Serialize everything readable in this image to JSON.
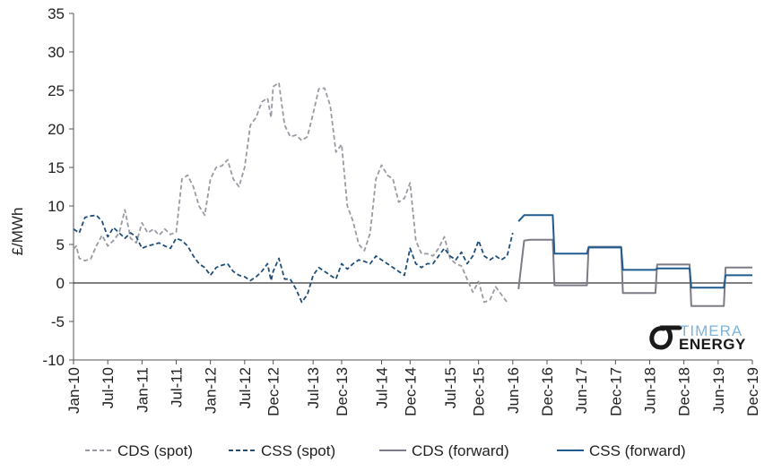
{
  "chart_data": {
    "type": "line",
    "title": "",
    "xlabel": "",
    "ylabel": "£/MWh",
    "ylim": [
      -10,
      35
    ],
    "yticks": [
      -10,
      -5,
      0,
      5,
      10,
      15,
      20,
      25,
      30,
      35
    ],
    "xlim": [
      "2010-01",
      "2019-12"
    ],
    "xtick_labels": [
      {
        "t": "2010-01",
        "label": "Jan-10"
      },
      {
        "t": "2010-07",
        "label": "Jul-10"
      },
      {
        "t": "2011-01",
        "label": "Jan-11"
      },
      {
        "t": "2011-07",
        "label": "Jul-11"
      },
      {
        "t": "2012-01",
        "label": "Jan-12"
      },
      {
        "t": "2012-07",
        "label": "Jul-12"
      },
      {
        "t": "2012-12",
        "label": "Dec-12"
      },
      {
        "t": "2013-07",
        "label": "Jul-13"
      },
      {
        "t": "2013-12",
        "label": "Dec-13"
      },
      {
        "t": "2014-07",
        "label": "Jul-14"
      },
      {
        "t": "2014-12",
        "label": "Dec-14"
      },
      {
        "t": "2015-07",
        "label": "Jul-15"
      },
      {
        "t": "2015-12",
        "label": "Dec-15"
      },
      {
        "t": "2016-06",
        "label": "Jun-16"
      },
      {
        "t": "2016-12",
        "label": "Dec-16"
      },
      {
        "t": "2017-06",
        "label": "Jun-17"
      },
      {
        "t": "2017-12",
        "label": "Dec-17"
      },
      {
        "t": "2018-06",
        "label": "Jun-18"
      },
      {
        "t": "2018-12",
        "label": "Dec-18"
      },
      {
        "t": "2019-06",
        "label": "Jun-19"
      },
      {
        "t": "2019-12",
        "label": "Dec-19"
      }
    ],
    "grid": false,
    "legend": "bottom",
    "series": [
      {
        "name": "CDS (spot)",
        "color": "#9a9aa4",
        "style": "dashed",
        "points": [
          [
            "2010-01",
            4.4
          ],
          [
            "2010-01-15",
            4.8
          ],
          [
            "2010-02",
            3.2
          ],
          [
            "2010-03",
            2.9
          ],
          [
            "2010-04",
            3.1
          ],
          [
            "2010-05",
            4.8
          ],
          [
            "2010-06",
            6.2
          ],
          [
            "2010-07",
            4.8
          ],
          [
            "2010-08",
            5.5
          ],
          [
            "2010-09",
            6.5
          ],
          [
            "2010-10",
            9.5
          ],
          [
            "2010-11",
            5.8
          ],
          [
            "2010-12",
            5.2
          ],
          [
            "2011-01",
            7.8
          ],
          [
            "2011-02",
            6.5
          ],
          [
            "2011-03",
            7.0
          ],
          [
            "2011-04",
            6.2
          ],
          [
            "2011-05",
            7.0
          ],
          [
            "2011-06",
            6.3
          ],
          [
            "2011-07",
            6.6
          ],
          [
            "2011-08",
            13.5
          ],
          [
            "2011-09",
            14.0
          ],
          [
            "2011-10",
            12.5
          ],
          [
            "2011-11",
            10.0
          ],
          [
            "2011-12",
            8.8
          ],
          [
            "2012-01",
            13.5
          ],
          [
            "2012-02",
            15.0
          ],
          [
            "2012-03",
            15.2
          ],
          [
            "2012-04",
            16.0
          ],
          [
            "2012-05",
            13.5
          ],
          [
            "2012-06",
            12.5
          ],
          [
            "2012-07",
            15.0
          ],
          [
            "2012-08",
            20.5
          ],
          [
            "2012-09",
            21.5
          ],
          [
            "2012-10",
            23.5
          ],
          [
            "2012-11",
            24.0
          ],
          [
            "2012-11-20",
            21.5
          ],
          [
            "2012-12",
            25.5
          ],
          [
            "2013-01",
            26.0
          ],
          [
            "2013-02",
            20.5
          ],
          [
            "2013-03",
            19.0
          ],
          [
            "2013-04",
            19.2
          ],
          [
            "2013-05",
            18.5
          ],
          [
            "2013-06",
            19.0
          ],
          [
            "2013-07",
            22.0
          ],
          [
            "2013-08",
            25.2
          ],
          [
            "2013-09",
            25.3
          ],
          [
            "2013-10",
            23.0
          ],
          [
            "2013-11",
            17.0
          ],
          [
            "2013-12",
            18.0
          ],
          [
            "2014-01",
            10.0
          ],
          [
            "2014-02",
            8.0
          ],
          [
            "2014-03",
            5.0
          ],
          [
            "2014-04",
            4.2
          ],
          [
            "2014-05",
            6.5
          ],
          [
            "2014-06",
            13.5
          ],
          [
            "2014-07",
            15.3
          ],
          [
            "2014-08",
            14.0
          ],
          [
            "2014-09",
            13.5
          ],
          [
            "2014-10",
            10.5
          ],
          [
            "2014-11",
            11.0
          ],
          [
            "2014-12",
            13.0
          ],
          [
            "2015-01",
            5.5
          ],
          [
            "2015-02",
            3.8
          ],
          [
            "2015-03",
            3.8
          ],
          [
            "2015-04",
            3.5
          ],
          [
            "2015-05",
            4.5
          ],
          [
            "2015-06",
            6.0
          ],
          [
            "2015-07",
            3.2
          ],
          [
            "2015-08",
            2.5
          ],
          [
            "2015-09",
            2.2
          ],
          [
            "2015-10",
            0.5
          ],
          [
            "2015-11",
            -1.2
          ],
          [
            "2015-12",
            0.2
          ],
          [
            "2016-01",
            -2.5
          ],
          [
            "2016-02",
            -2.2
          ],
          [
            "2016-03",
            -0.5
          ],
          [
            "2016-04",
            -1.5
          ],
          [
            "2016-05",
            -2.5
          ]
        ]
      },
      {
        "name": "CSS (spot)",
        "color": "#1f4e79",
        "style": "dashed",
        "points": [
          [
            "2010-01",
            7.0
          ],
          [
            "2010-02",
            6.5
          ],
          [
            "2010-03",
            8.5
          ],
          [
            "2010-04",
            8.7
          ],
          [
            "2010-05",
            8.8
          ],
          [
            "2010-06",
            8.0
          ],
          [
            "2010-07",
            6.0
          ],
          [
            "2010-08",
            7.2
          ],
          [
            "2010-09",
            6.5
          ],
          [
            "2010-10",
            5.8
          ],
          [
            "2010-11",
            6.5
          ],
          [
            "2010-12",
            6.0
          ],
          [
            "2011-01",
            4.5
          ],
          [
            "2011-02",
            4.8
          ],
          [
            "2011-03",
            5.0
          ],
          [
            "2011-04",
            5.2
          ],
          [
            "2011-05",
            4.8
          ],
          [
            "2011-06",
            4.5
          ],
          [
            "2011-07",
            5.8
          ],
          [
            "2011-08",
            5.5
          ],
          [
            "2011-09",
            4.8
          ],
          [
            "2011-10",
            3.5
          ],
          [
            "2011-11",
            2.5
          ],
          [
            "2011-12",
            2.0
          ],
          [
            "2012-01",
            1.0
          ],
          [
            "2012-02",
            2.0
          ],
          [
            "2012-03",
            2.3
          ],
          [
            "2012-04",
            2.5
          ],
          [
            "2012-05",
            1.5
          ],
          [
            "2012-06",
            1.0
          ],
          [
            "2012-07",
            0.8
          ],
          [
            "2012-08",
            0.3
          ],
          [
            "2012-09",
            0.8
          ],
          [
            "2012-10",
            1.5
          ],
          [
            "2012-11",
            2.5
          ],
          [
            "2012-11-20",
            0.3
          ],
          [
            "2012-12",
            1.5
          ],
          [
            "2013-01",
            3.2
          ],
          [
            "2013-02",
            0.5
          ],
          [
            "2013-03",
            0.5
          ],
          [
            "2013-04",
            -0.8
          ],
          [
            "2013-05",
            -2.5
          ],
          [
            "2013-06",
            -1.5
          ],
          [
            "2013-07",
            1.0
          ],
          [
            "2013-08",
            2.0
          ],
          [
            "2013-09",
            1.5
          ],
          [
            "2013-10",
            1.0
          ],
          [
            "2013-11",
            0.5
          ],
          [
            "2013-12",
            2.5
          ],
          [
            "2014-01",
            1.8
          ],
          [
            "2014-02",
            2.5
          ],
          [
            "2014-03",
            3.0
          ],
          [
            "2014-04",
            2.8
          ],
          [
            "2014-05",
            2.5
          ],
          [
            "2014-06",
            3.5
          ],
          [
            "2014-07",
            3.0
          ],
          [
            "2014-08",
            2.5
          ],
          [
            "2014-09",
            2.0
          ],
          [
            "2014-10",
            1.5
          ],
          [
            "2014-11",
            1.0
          ],
          [
            "2014-12",
            4.5
          ],
          [
            "2015-01",
            2.5
          ],
          [
            "2015-02",
            2.0
          ],
          [
            "2015-03",
            2.5
          ],
          [
            "2015-04",
            2.5
          ],
          [
            "2015-05",
            3.5
          ],
          [
            "2015-06",
            4.5
          ],
          [
            "2015-07",
            3.5
          ],
          [
            "2015-08",
            3.0
          ],
          [
            "2015-09",
            4.0
          ],
          [
            "2015-10",
            2.5
          ],
          [
            "2015-11",
            3.5
          ],
          [
            "2015-12",
            5.5
          ],
          [
            "2016-01",
            3.5
          ],
          [
            "2016-02",
            3.0
          ],
          [
            "2016-03",
            3.5
          ],
          [
            "2016-04",
            3.0
          ],
          [
            "2016-05",
            3.5
          ],
          [
            "2016-06",
            6.5
          ]
        ]
      },
      {
        "name": "CDS (forward)",
        "color": "#7f7a87",
        "style": "solid",
        "points": [
          [
            "2016-07",
            -0.8
          ],
          [
            "2016-08",
            5.5
          ],
          [
            "2016-09",
            5.6
          ],
          [
            "2016-10",
            5.6
          ],
          [
            "2016-11",
            5.6
          ],
          [
            "2016-12",
            5.6
          ],
          [
            "2017-01",
            5.6
          ],
          [
            "2017-01-10",
            -0.3
          ],
          [
            "2017-02",
            -0.3
          ],
          [
            "2017-03",
            -0.3
          ],
          [
            "2017-04",
            -0.3
          ],
          [
            "2017-05",
            -0.3
          ],
          [
            "2017-06",
            -0.3
          ],
          [
            "2017-07",
            -0.3
          ],
          [
            "2017-07-10",
            4.7
          ],
          [
            "2017-08",
            4.7
          ],
          [
            "2017-09",
            4.7
          ],
          [
            "2017-10",
            4.7
          ],
          [
            "2017-11",
            4.7
          ],
          [
            "2017-12",
            4.7
          ],
          [
            "2018-01",
            4.7
          ],
          [
            "2018-01-10",
            -1.3
          ],
          [
            "2018-02",
            -1.3
          ],
          [
            "2018-03",
            -1.3
          ],
          [
            "2018-04",
            -1.3
          ],
          [
            "2018-05",
            -1.3
          ],
          [
            "2018-06",
            -1.3
          ],
          [
            "2018-07",
            -1.3
          ],
          [
            "2018-07-10",
            2.4
          ],
          [
            "2018-08",
            2.4
          ],
          [
            "2018-09",
            2.4
          ],
          [
            "2018-10",
            2.4
          ],
          [
            "2018-11",
            2.4
          ],
          [
            "2018-12",
            2.4
          ],
          [
            "2019-01",
            2.4
          ],
          [
            "2019-01-10",
            -3.0
          ],
          [
            "2019-02",
            -3.0
          ],
          [
            "2019-03",
            -3.0
          ],
          [
            "2019-04",
            -3.0
          ],
          [
            "2019-05",
            -3.0
          ],
          [
            "2019-06",
            -3.0
          ],
          [
            "2019-07",
            -3.0
          ],
          [
            "2019-07-10",
            2.0
          ],
          [
            "2019-12",
            2.0
          ]
        ]
      },
      {
        "name": "CSS (forward)",
        "color": "#1f5b8f",
        "style": "solid",
        "points": [
          [
            "2016-07",
            8.0
          ],
          [
            "2016-08",
            8.8
          ],
          [
            "2016-09",
            8.8
          ],
          [
            "2016-10",
            8.8
          ],
          [
            "2016-11",
            8.8
          ],
          [
            "2016-12",
            8.8
          ],
          [
            "2017-01",
            8.8
          ],
          [
            "2017-01-10",
            3.8
          ],
          [
            "2017-02",
            3.8
          ],
          [
            "2017-03",
            3.8
          ],
          [
            "2017-04",
            3.8
          ],
          [
            "2017-05",
            3.8
          ],
          [
            "2017-06",
            3.8
          ],
          [
            "2017-07",
            3.8
          ],
          [
            "2017-07-10",
            4.6
          ],
          [
            "2017-08",
            4.6
          ],
          [
            "2017-09",
            4.6
          ],
          [
            "2017-10",
            4.6
          ],
          [
            "2017-11",
            4.6
          ],
          [
            "2017-12",
            4.6
          ],
          [
            "2018-01",
            4.6
          ],
          [
            "2018-01-10",
            1.7
          ],
          [
            "2018-02",
            1.7
          ],
          [
            "2018-03",
            1.7
          ],
          [
            "2018-04",
            1.7
          ],
          [
            "2018-05",
            1.7
          ],
          [
            "2018-06",
            1.7
          ],
          [
            "2018-07",
            1.7
          ],
          [
            "2018-07-10",
            1.9
          ],
          [
            "2018-08",
            1.9
          ],
          [
            "2018-09",
            1.9
          ],
          [
            "2018-10",
            1.9
          ],
          [
            "2018-11",
            1.9
          ],
          [
            "2018-12",
            1.9
          ],
          [
            "2019-01",
            1.9
          ],
          [
            "2019-01-10",
            -0.6
          ],
          [
            "2019-02",
            -0.6
          ],
          [
            "2019-03",
            -0.6
          ],
          [
            "2019-04",
            -0.6
          ],
          [
            "2019-05",
            -0.6
          ],
          [
            "2019-06",
            -0.6
          ],
          [
            "2019-07",
            -0.6
          ],
          [
            "2019-07-10",
            1.0
          ],
          [
            "2019-12",
            1.0
          ]
        ]
      }
    ]
  },
  "logo": {
    "line1": "TIMERA",
    "line2": "ENERGY",
    "color_light": "#7fb3d9",
    "color_dark": "#1a1a1a"
  }
}
